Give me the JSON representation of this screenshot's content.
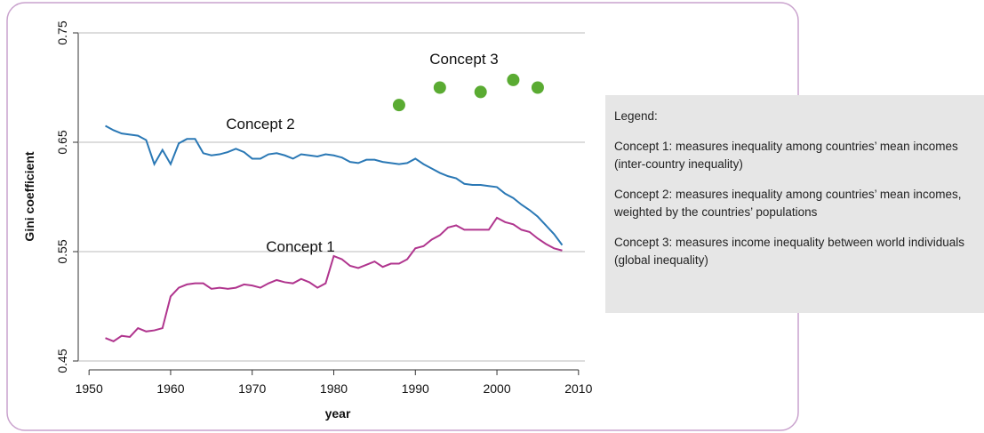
{
  "chart_data": {
    "type": "line",
    "xlabel": "year",
    "ylabel": "Gini coefficient",
    "xlim": [
      1949,
      2011
    ],
    "xticks": [
      1950,
      1960,
      1970,
      1980,
      1990,
      2000,
      2010
    ],
    "ylim": [
      0.45,
      0.75
    ],
    "yticks": [
      0.45,
      0.55,
      0.65,
      0.75
    ],
    "grid": true,
    "annotations": [
      "Concept 1",
      "Concept 2",
      "Concept 3"
    ],
    "series": [
      {
        "name": "Concept 1",
        "color": "#b0358e",
        "style": "line",
        "x": [
          1952,
          1953,
          1954,
          1955,
          1956,
          1957,
          1958,
          1959,
          1960,
          1961,
          1962,
          1963,
          1964,
          1965,
          1966,
          1967,
          1968,
          1969,
          1970,
          1971,
          1972,
          1973,
          1974,
          1975,
          1976,
          1977,
          1978,
          1979,
          1980,
          1981,
          1982,
          1983,
          1984,
          1985,
          1986,
          1987,
          1988,
          1989,
          1990,
          1991,
          1992,
          1993,
          1994,
          1995,
          1996,
          1997,
          1998,
          1999,
          2000,
          2001,
          2002,
          2003,
          2004,
          2005,
          2006,
          2007,
          2008
        ],
        "values": [
          0.471,
          0.468,
          0.473,
          0.472,
          0.48,
          0.477,
          0.478,
          0.48,
          0.509,
          0.517,
          0.52,
          0.521,
          0.521,
          0.516,
          0.517,
          0.516,
          0.517,
          0.52,
          0.519,
          0.517,
          0.521,
          0.524,
          0.522,
          0.521,
          0.525,
          0.522,
          0.517,
          0.521,
          0.546,
          0.543,
          0.537,
          0.535,
          0.538,
          0.541,
          0.536,
          0.539,
          0.539,
          0.543,
          0.553,
          0.555,
          0.561,
          0.565,
          0.572,
          0.574,
          0.57,
          0.57,
          0.57,
          0.57,
          0.581,
          0.577,
          0.575,
          0.57,
          0.568,
          0.562,
          0.557,
          0.553,
          0.551
        ]
      },
      {
        "name": "Concept 2",
        "color": "#2a78b5",
        "style": "line",
        "x": [
          1952,
          1953,
          1954,
          1955,
          1956,
          1957,
          1958,
          1959,
          1960,
          1961,
          1962,
          1963,
          1964,
          1965,
          1966,
          1967,
          1968,
          1969,
          1970,
          1971,
          1972,
          1973,
          1974,
          1975,
          1976,
          1977,
          1978,
          1979,
          1980,
          1981,
          1982,
          1983,
          1984,
          1985,
          1986,
          1987,
          1988,
          1989,
          1990,
          1991,
          1992,
          1993,
          1994,
          1995,
          1996,
          1997,
          1998,
          1999,
          2000,
          2001,
          2002,
          2003,
          2004,
          2005,
          2006,
          2007,
          2008
        ],
        "values": [
          0.665,
          0.661,
          0.658,
          0.657,
          0.656,
          0.652,
          0.63,
          0.643,
          0.63,
          0.649,
          0.653,
          0.653,
          0.64,
          0.638,
          0.639,
          0.641,
          0.644,
          0.641,
          0.635,
          0.635,
          0.639,
          0.64,
          0.638,
          0.635,
          0.639,
          0.638,
          0.637,
          0.639,
          0.638,
          0.636,
          0.632,
          0.631,
          0.634,
          0.634,
          0.632,
          0.631,
          0.63,
          0.631,
          0.635,
          0.63,
          0.626,
          0.622,
          0.619,
          0.617,
          0.612,
          0.611,
          0.611,
          0.61,
          0.609,
          0.603,
          0.599,
          0.593,
          0.588,
          0.582,
          0.574,
          0.566,
          0.556
        ]
      },
      {
        "name": "Concept 3",
        "color": "#5aab32",
        "style": "points",
        "x": [
          1988,
          1993,
          1998,
          2002,
          2005
        ],
        "values": [
          0.684,
          0.7,
          0.696,
          0.707,
          0.7
        ]
      }
    ]
  },
  "legend": {
    "title": "Legend:",
    "items": [
      "Concept 1: measures inequality among countries’ mean incomes (inter-country inequality)",
      "Concept 2: measures inequality among countries’ mean incomes, weighted by the countries’ populations",
      "Concept 3: measures income inequality between world individuals (global inequality)"
    ]
  }
}
